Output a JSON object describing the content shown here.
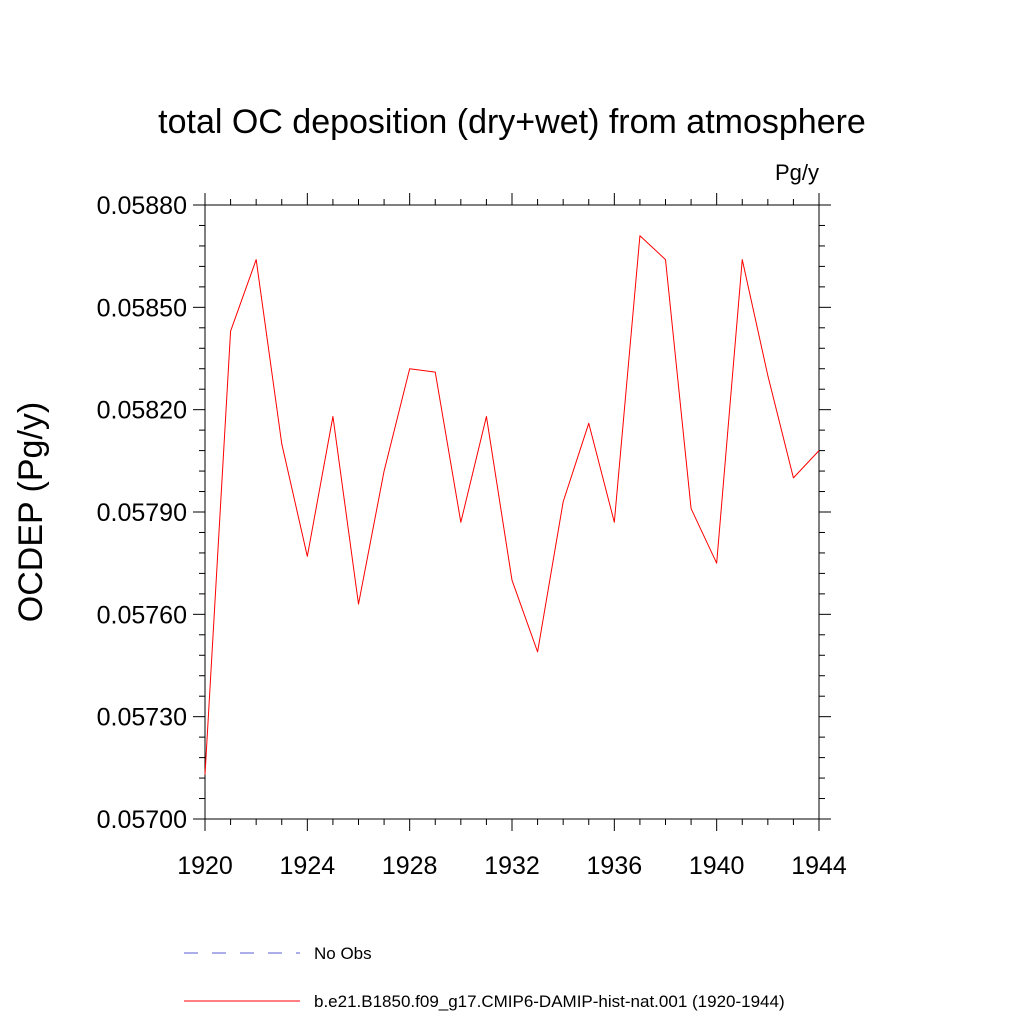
{
  "chart_data": {
    "type": "line",
    "title": "total OC deposition (dry+wet) from atmosphere",
    "units_label": "Pg/y",
    "ylabel": "OCDEP  (Pg/y)",
    "xlabel": "",
    "xlim": [
      1920,
      1944
    ],
    "ylim": [
      0.057,
      0.0588
    ],
    "x_ticks": [
      1920,
      1924,
      1928,
      1932,
      1936,
      1940,
      1944
    ],
    "x_tick_labels": [
      "1920",
      "1924",
      "1928",
      "1932",
      "1936",
      "1940",
      "1944"
    ],
    "y_ticks": [
      0.057,
      0.0573,
      0.0576,
      0.0579,
      0.0582,
      0.0585,
      0.0588
    ],
    "y_tick_labels": [
      "0.05700",
      "0.05730",
      "0.05760",
      "0.05790",
      "0.05820",
      "0.05850",
      "0.05880"
    ],
    "grid": false,
    "legend_position": "bottom",
    "x": [
      1920,
      1921,
      1922,
      1923,
      1924,
      1925,
      1926,
      1927,
      1928,
      1929,
      1930,
      1931,
      1932,
      1933,
      1934,
      1935,
      1936,
      1937,
      1938,
      1939,
      1940,
      1941,
      1942,
      1943,
      1944
    ],
    "series": [
      {
        "name": "b.e21.B1850.f09_g17.CMIP6-DAMIP-hist-nat.001 (1920-1944)",
        "color": "#ff0000",
        "style": "solid",
        "values": [
          0.05713,
          0.05843,
          0.05864,
          0.0581,
          0.05777,
          0.05818,
          0.05763,
          0.05802,
          0.05832,
          0.05831,
          0.05787,
          0.05818,
          0.0577,
          0.05749,
          0.05793,
          0.05816,
          0.05787,
          0.05871,
          0.05864,
          0.05791,
          0.05775,
          0.05864,
          0.0583,
          0.058,
          0.05808
        ]
      }
    ],
    "legend": [
      {
        "label": "No Obs",
        "color": "#5b5bd6",
        "style": "dashed"
      },
      {
        "label": "b.e21.B1850.f09_g17.CMIP6-DAMIP-hist-nat.001 (1920-1944)",
        "color": "#ff0000",
        "style": "solid"
      }
    ]
  }
}
